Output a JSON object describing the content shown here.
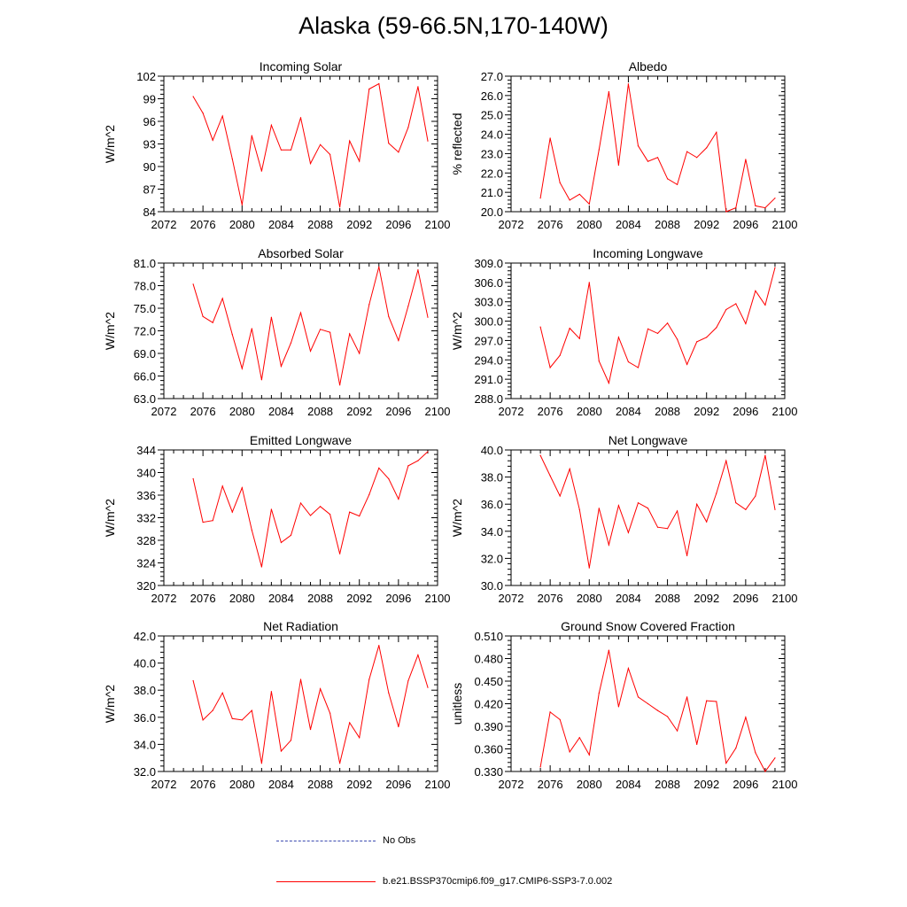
{
  "title": "Alaska (59-66.5N,170-140W)",
  "legend": [
    {
      "label": "No Obs",
      "style": "dashed",
      "color": "#3b4bb0"
    },
    {
      "label": "b.e21.BSSP370cmip6.f09_g17.CMIP6-SSP3-7.0.002",
      "style": "solid",
      "color": "#ff0000"
    }
  ],
  "line_color": "#ff0000",
  "chart_data": [
    {
      "type": "line",
      "title": "Incoming Solar",
      "ylabel": "W/m^2",
      "xlabel": "",
      "xlim": [
        2072,
        2100
      ],
      "ylim": [
        84,
        102
      ],
      "xticks": [
        "2072",
        "2076",
        "2080",
        "2084",
        "2088",
        "2092",
        "2096",
        "2100"
      ],
      "yticks": [
        "84",
        "87",
        "90",
        "93",
        "96",
        "99",
        "102"
      ],
      "x": [
        2075,
        2076,
        2077,
        2078,
        2079,
        2080,
        2081,
        2082,
        2083,
        2084,
        2085,
        2086,
        2087,
        2088,
        2089,
        2090,
        2091,
        2092,
        2093,
        2094,
        2095,
        2096,
        2097,
        2098,
        2099
      ],
      "y": [
        99.3,
        97.1,
        93.5,
        96.7,
        91.0,
        84.9,
        94.1,
        89.4,
        95.5,
        92.2,
        92.2,
        96.5,
        90.4,
        92.9,
        91.6,
        84.6,
        93.4,
        90.7,
        100.3,
        101.0,
        93.1,
        91.9,
        95.2,
        100.6,
        93.4
      ]
    },
    {
      "type": "line",
      "title": "Albedo",
      "ylabel": "% reflected",
      "xlabel": "",
      "xlim": [
        2072,
        2100
      ],
      "ylim": [
        20.0,
        27.0
      ],
      "xticks": [
        "2072",
        "2076",
        "2080",
        "2084",
        "2088",
        "2092",
        "2096",
        "2100"
      ],
      "yticks": [
        "20.0",
        "21.0",
        "22.0",
        "23.0",
        "24.0",
        "25.0",
        "26.0",
        "27.0"
      ],
      "x": [
        2075,
        2076,
        2077,
        2078,
        2079,
        2080,
        2081,
        2082,
        2083,
        2084,
        2085,
        2086,
        2087,
        2088,
        2089,
        2090,
        2091,
        2092,
        2093,
        2094,
        2095,
        2096,
        2097,
        2098,
        2099
      ],
      "y": [
        20.7,
        23.8,
        21.5,
        20.6,
        20.9,
        20.4,
        23.2,
        26.2,
        22.4,
        26.6,
        23.4,
        22.6,
        22.8,
        21.7,
        21.4,
        23.1,
        22.8,
        23.3,
        24.1,
        20.0,
        20.2,
        22.7,
        20.3,
        20.2,
        20.7
      ]
    },
    {
      "type": "line",
      "title": "Absorbed Solar",
      "ylabel": "W/m^2",
      "xlabel": "",
      "xlim": [
        2072,
        2100
      ],
      "ylim": [
        63.0,
        81.0
      ],
      "xticks": [
        "2072",
        "2076",
        "2080",
        "2084",
        "2088",
        "2092",
        "2096",
        "2100"
      ],
      "yticks": [
        "63.0",
        "66.0",
        "69.0",
        "72.0",
        "75.0",
        "78.0",
        "81.0"
      ],
      "x": [
        2075,
        2076,
        2077,
        2078,
        2079,
        2080,
        2081,
        2082,
        2083,
        2084,
        2085,
        2086,
        2087,
        2088,
        2089,
        2090,
        2091,
        2092,
        2093,
        2094,
        2095,
        2096,
        2097,
        2098,
        2099
      ],
      "y": [
        78.2,
        73.9,
        73.1,
        76.3,
        71.5,
        67.0,
        72.3,
        65.5,
        73.8,
        67.3,
        70.4,
        74.4,
        69.3,
        72.2,
        71.8,
        64.8,
        71.6,
        69.0,
        75.5,
        80.5,
        73.9,
        70.7,
        75.3,
        80.1,
        73.8
      ]
    },
    {
      "type": "line",
      "title": "Incoming Longwave",
      "ylabel": "W/m^2",
      "xlabel": "",
      "xlim": [
        2072,
        2100
      ],
      "ylim": [
        288.0,
        309.0
      ],
      "xticks": [
        "2072",
        "2076",
        "2080",
        "2084",
        "2088",
        "2092",
        "2096",
        "2100"
      ],
      "yticks": [
        "288.0",
        "291.0",
        "294.0",
        "297.0",
        "300.0",
        "303.0",
        "306.0",
        "309.0"
      ],
      "x": [
        2075,
        2076,
        2077,
        2078,
        2079,
        2080,
        2081,
        2082,
        2083,
        2084,
        2085,
        2086,
        2087,
        2088,
        2089,
        2090,
        2091,
        2092,
        2093,
        2094,
        2095,
        2096,
        2097,
        2098,
        2099
      ],
      "y": [
        299.1,
        292.8,
        294.7,
        298.9,
        297.3,
        306.0,
        293.8,
        290.4,
        297.5,
        293.7,
        292.8,
        298.8,
        298.1,
        299.7,
        297.2,
        293.3,
        296.8,
        297.5,
        299.0,
        301.8,
        302.7,
        299.6,
        304.7,
        302.5,
        308.3
      ]
    },
    {
      "type": "line",
      "title": "Emitted Longwave",
      "ylabel": "W/m^2",
      "xlabel": "",
      "xlim": [
        2072,
        2100
      ],
      "ylim": [
        320,
        344
      ],
      "xticks": [
        "2072",
        "2076",
        "2080",
        "2084",
        "2088",
        "2092",
        "2096",
        "2100"
      ],
      "yticks": [
        "320",
        "324",
        "328",
        "332",
        "336",
        "340",
        "344"
      ],
      "x": [
        2075,
        2076,
        2077,
        2078,
        2079,
        2080,
        2081,
        2082,
        2083,
        2084,
        2085,
        2086,
        2087,
        2088,
        2089,
        2090,
        2091,
        2092,
        2093,
        2094,
        2095,
        2096,
        2097,
        2098,
        2099
      ],
      "y": [
        338.9,
        331.2,
        331.5,
        337.6,
        333.0,
        337.3,
        329.8,
        323.3,
        333.5,
        327.6,
        328.9,
        334.6,
        332.4,
        334.0,
        332.6,
        325.6,
        333.0,
        332.3,
        336.1,
        340.8,
        338.9,
        335.3,
        341.2,
        342.1,
        343.7
      ]
    },
    {
      "type": "line",
      "title": "Net Longwave",
      "ylabel": "W/m^2",
      "xlabel": "",
      "xlim": [
        2072,
        2100
      ],
      "ylim": [
        30.0,
        40.0
      ],
      "xticks": [
        "2072",
        "2076",
        "2080",
        "2084",
        "2088",
        "2092",
        "2096",
        "2100"
      ],
      "yticks": [
        "30.0",
        "32.0",
        "34.0",
        "36.0",
        "38.0",
        "40.0"
      ],
      "x": [
        2075,
        2076,
        2077,
        2078,
        2079,
        2080,
        2081,
        2082,
        2083,
        2084,
        2085,
        2086,
        2087,
        2088,
        2089,
        2090,
        2091,
        2092,
        2093,
        2094,
        2095,
        2096,
        2097,
        2098,
        2099
      ],
      "y": [
        39.6,
        38.1,
        36.6,
        38.6,
        35.6,
        31.3,
        35.7,
        33.0,
        35.9,
        33.9,
        36.1,
        35.7,
        34.3,
        34.2,
        35.5,
        32.2,
        36.0,
        34.7,
        36.8,
        39.2,
        36.1,
        35.6,
        36.6,
        39.6,
        35.6
      ]
    },
    {
      "type": "line",
      "title": "Net Radiation",
      "ylabel": "W/m^2",
      "xlabel": "",
      "xlim": [
        2072,
        2100
      ],
      "ylim": [
        32.0,
        42.0
      ],
      "xticks": [
        "2072",
        "2076",
        "2080",
        "2084",
        "2088",
        "2092",
        "2096",
        "2100"
      ],
      "yticks": [
        "32.0",
        "34.0",
        "36.0",
        "38.0",
        "40.0",
        "42.0"
      ],
      "x": [
        2075,
        2076,
        2077,
        2078,
        2079,
        2080,
        2081,
        2082,
        2083,
        2084,
        2085,
        2086,
        2087,
        2088,
        2089,
        2090,
        2091,
        2092,
        2093,
        2094,
        2095,
        2096,
        2097,
        2098,
        2099
      ],
      "y": [
        38.7,
        35.8,
        36.5,
        37.8,
        35.9,
        35.8,
        36.5,
        32.6,
        37.9,
        33.5,
        34.3,
        38.8,
        35.1,
        38.1,
        36.3,
        32.6,
        35.6,
        34.5,
        38.8,
        41.3,
        37.8,
        35.3,
        38.7,
        40.6,
        38.2
      ]
    },
    {
      "type": "line",
      "title": "Ground Snow Covered Fraction",
      "ylabel": "unitless",
      "xlabel": "",
      "xlim": [
        2072,
        2100
      ],
      "ylim": [
        0.33,
        0.51
      ],
      "xticks": [
        "2072",
        "2076",
        "2080",
        "2084",
        "2088",
        "2092",
        "2096",
        "2100"
      ],
      "yticks": [
        "0.330",
        "0.360",
        "0.390",
        "0.420",
        "0.450",
        "0.480",
        "0.510"
      ],
      "x": [
        2075,
        2076,
        2077,
        2078,
        2079,
        2080,
        2081,
        2082,
        2083,
        2084,
        2085,
        2086,
        2087,
        2088,
        2089,
        2090,
        2091,
        2092,
        2093,
        2094,
        2095,
        2096,
        2097,
        2098,
        2099
      ],
      "y": [
        0.336,
        0.409,
        0.399,
        0.356,
        0.375,
        0.352,
        0.434,
        0.491,
        0.416,
        0.467,
        0.429,
        0.42,
        0.411,
        0.403,
        0.384,
        0.429,
        0.366,
        0.424,
        0.423,
        0.341,
        0.361,
        0.402,
        0.355,
        0.33,
        0.348
      ]
    }
  ]
}
